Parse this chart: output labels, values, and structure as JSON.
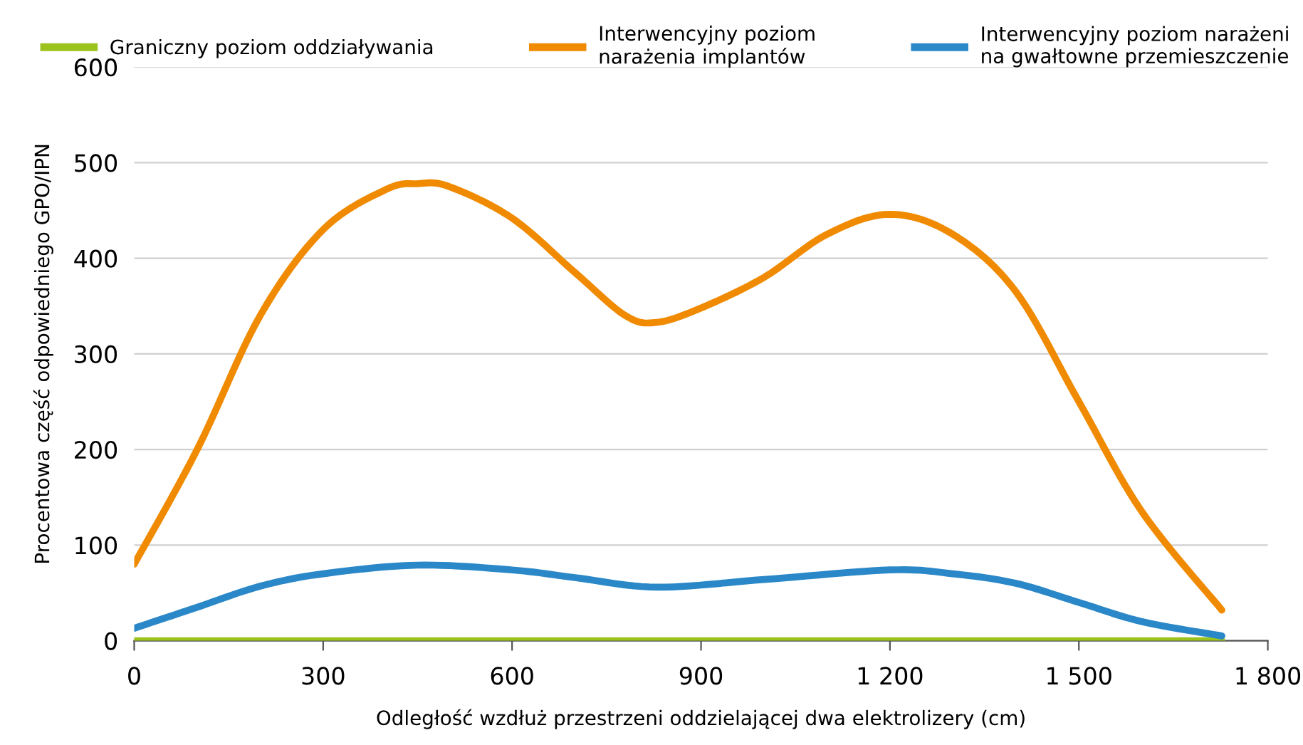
{
  "chart_data": {
    "type": "line",
    "xlabel": "Odległość wzdłuż przestrzeni oddzielającej dwa elektrolizery (cm)",
    "ylabel": "Procentowa część odpowiedniego GPO/IPN",
    "xlim": [
      0,
      1800
    ],
    "xticks": [
      0,
      300,
      600,
      900,
      {
        "value": 1200,
        "label": "1 200"
      },
      {
        "value": 1500,
        "label": "1 500"
      },
      {
        "value": 1800,
        "label": "1 800"
      }
    ],
    "ylim": [
      0,
      600
    ],
    "yticks": [
      0,
      100,
      200,
      300,
      400,
      500,
      600
    ],
    "grid": "y",
    "legend": "top",
    "marker": "none",
    "line_style": "solid",
    "series": [
      {
        "name": "Graniczny poziom oddziaływania",
        "color": "#9bc31c",
        "x": [
          0,
          1727
        ],
        "values": [
          0,
          0
        ]
      },
      {
        "name": "Interwencyjny poziom\nnarażenia implantów",
        "color": "#f08a00",
        "x": [
          0,
          100,
          200,
          300,
          400,
          450,
          500,
          600,
          700,
          780,
          830,
          900,
          1000,
          1100,
          1200,
          1300,
          1400,
          1500,
          1600,
          1727
        ],
        "values": [
          80,
          200,
          340,
          430,
          472,
          478,
          475,
          442,
          385,
          340,
          333,
          348,
          380,
          425,
          446,
          425,
          365,
          250,
          135,
          32
        ]
      },
      {
        "name": "Interwencyjny poziom narażeni\nna gwałtowne przemieszczenie",
        "color": "#2a88c8",
        "x": [
          0,
          100,
          200,
          300,
          450,
          600,
          700,
          830,
          1000,
          1200,
          1300,
          1400,
          1500,
          1600,
          1727
        ],
        "values": [
          13,
          35,
          57,
          70,
          79,
          74,
          66,
          56,
          64,
          74,
          70,
          60,
          40,
          20,
          5
        ]
      }
    ]
  }
}
